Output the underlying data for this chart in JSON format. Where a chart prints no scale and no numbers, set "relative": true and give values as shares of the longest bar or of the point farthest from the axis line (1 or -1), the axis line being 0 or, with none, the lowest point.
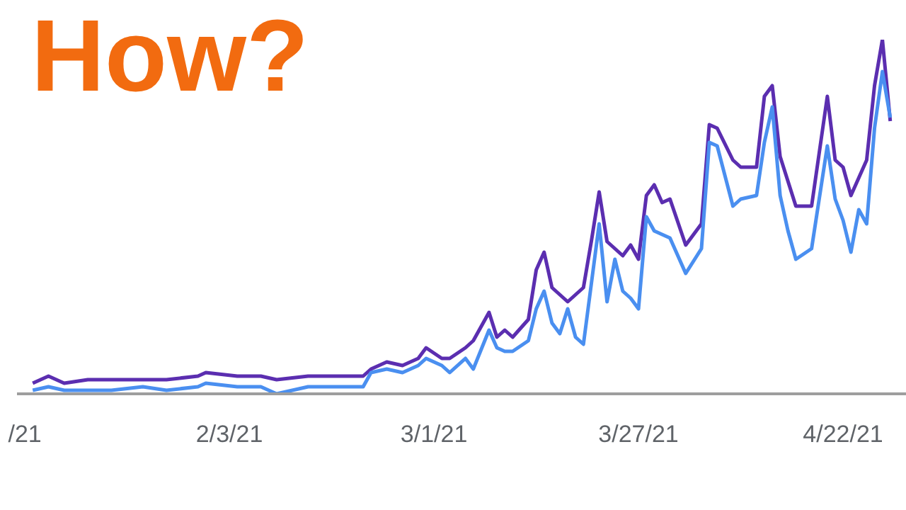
{
  "chart_data": {
    "type": "line",
    "title": "How?",
    "relative": true,
    "marker": "none",
    "line_style": "solid",
    "x": [
      "2021-01-09",
      "2021-01-11",
      "2021-01-13",
      "2021-01-16",
      "2021-01-19",
      "2021-01-23",
      "2021-01-26",
      "2021-01-30",
      "2021-01-31",
      "2021-02-04",
      "2021-02-07",
      "2021-02-09",
      "2021-02-13",
      "2021-02-16",
      "2021-02-20",
      "2021-02-21",
      "2021-02-23",
      "2021-02-25",
      "2021-02-27",
      "2021-02-28",
      "2021-03-02",
      "2021-03-03",
      "2021-03-05",
      "2021-03-06",
      "2021-03-08",
      "2021-03-09",
      "2021-03-10",
      "2021-03-11",
      "2021-03-13",
      "2021-03-14",
      "2021-03-15",
      "2021-03-16",
      "2021-03-17",
      "2021-03-18",
      "2021-03-19",
      "2021-03-20",
      "2021-03-21",
      "2021-03-22",
      "2021-03-23",
      "2021-03-24",
      "2021-03-25",
      "2021-03-26",
      "2021-03-27",
      "2021-03-28",
      "2021-03-29",
      "2021-03-30",
      "2021-03-31",
      "2021-04-02",
      "2021-04-04",
      "2021-04-05",
      "2021-04-06",
      "2021-04-08",
      "2021-04-09",
      "2021-04-11",
      "2021-04-12",
      "2021-04-13",
      "2021-04-14",
      "2021-04-15",
      "2021-04-16",
      "2021-04-18",
      "2021-04-20",
      "2021-04-21",
      "2021-04-22",
      "2021-04-23",
      "2021-04-24",
      "2021-04-25",
      "2021-04-26",
      "2021-04-27",
      "2021-04-28"
    ],
    "xlim": [
      "2021-01-07",
      "2021-04-30"
    ],
    "xticks": [
      {
        "value": "2021-01-08",
        "label": "/21"
      },
      {
        "value": "2021-02-03",
        "label": "2/3/21"
      },
      {
        "value": "2021-03-01",
        "label": "3/1/21"
      },
      {
        "value": "2021-03-27",
        "label": "3/27/21"
      },
      {
        "value": "2021-04-22",
        "label": "4/22/21"
      }
    ],
    "series": [
      {
        "color": "#5b2eb0",
        "values": [
          0.03,
          0.05,
          0.03,
          0.04,
          0.04,
          0.04,
          0.04,
          0.05,
          0.06,
          0.05,
          0.05,
          0.04,
          0.05,
          0.05,
          0.05,
          0.07,
          0.09,
          0.08,
          0.1,
          0.13,
          0.1,
          0.1,
          0.13,
          0.15,
          0.23,
          0.16,
          0.18,
          0.16,
          0.21,
          0.35,
          0.4,
          0.3,
          0.28,
          0.26,
          0.28,
          0.3,
          0.43,
          0.57,
          0.43,
          0.41,
          0.39,
          0.42,
          0.38,
          0.56,
          0.59,
          0.54,
          0.55,
          0.42,
          0.48,
          0.76,
          0.75,
          0.66,
          0.64,
          0.64,
          0.84,
          0.87,
          0.67,
          0.6,
          0.53,
          0.53,
          0.84,
          0.66,
          0.64,
          0.56,
          0.61,
          0.66,
          0.87,
          1.0,
          0.77
        ]
      },
      {
        "color": "#4a8ff0",
        "values": [
          0.01,
          0.02,
          0.01,
          0.01,
          0.01,
          0.02,
          0.01,
          0.02,
          0.03,
          0.02,
          0.02,
          0,
          0.02,
          0.02,
          0.02,
          0.06,
          0.07,
          0.06,
          0.08,
          0.1,
          0.08,
          0.06,
          0.1,
          0.07,
          0.18,
          0.13,
          0.12,
          0.12,
          0.15,
          0.24,
          0.29,
          0.2,
          0.17,
          0.24,
          0.16,
          0.14,
          0.31,
          0.48,
          0.26,
          0.38,
          0.29,
          0.27,
          0.24,
          0.5,
          0.46,
          0.45,
          0.44,
          0.34,
          0.41,
          0.71,
          0.7,
          0.53,
          0.55,
          0.56,
          0.71,
          0.81,
          0.56,
          0.46,
          0.38,
          0.41,
          0.7,
          0.55,
          0.49,
          0.4,
          0.52,
          0.48,
          0.75,
          0.91,
          0.78
        ]
      }
    ]
  }
}
